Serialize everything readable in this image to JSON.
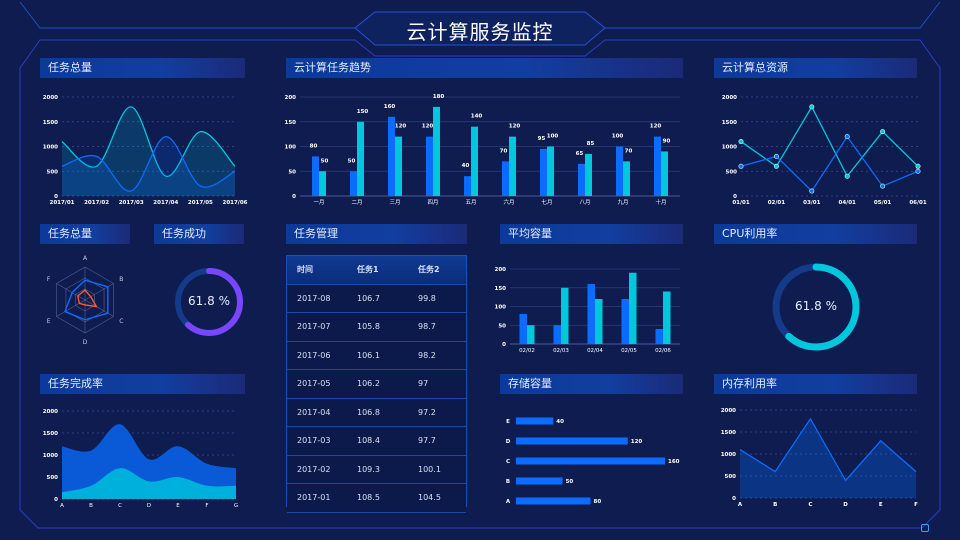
{
  "header": {
    "title": "云计算服务监控"
  },
  "panels": {
    "total_tasks": "任务总量",
    "trend": "云计算任务趋势",
    "resources": "云计算总资源",
    "total_tasks_radar": "任务总量",
    "task_success": "任务成功",
    "task_mgmt": "任务管理",
    "avg_capacity": "平均容量",
    "cpu": "CPU利用率",
    "completion": "任务完成率",
    "storage": "存储容量",
    "memory": "内存利用率"
  },
  "colors": {
    "blue": "#0b6cff",
    "cyan": "#00c8dc",
    "purple": "#7a45ff",
    "orange": "#ff5a2a",
    "track": "#143a8a"
  },
  "task_success": {
    "value": 61.8,
    "label": "61.8 %"
  },
  "cpu": {
    "value": 61.8,
    "label": "61.8 %"
  },
  "table": {
    "headers": [
      "时间",
      "任务1",
      "任务2"
    ],
    "rows": [
      [
        "2017-08",
        "106.7",
        "99.8"
      ],
      [
        "2017-07",
        "105.8",
        "98.7"
      ],
      [
        "2017-06",
        "106.1",
        "98.2"
      ],
      [
        "2017-05",
        "106.2",
        "97"
      ],
      [
        "2017-04",
        "106.8",
        "97.2"
      ],
      [
        "2017-03",
        "108.4",
        "97.7"
      ],
      [
        "2017-02",
        "109.3",
        "100.1"
      ],
      [
        "2017-01",
        "108.5",
        "104.5"
      ]
    ]
  },
  "chart_data": [
    {
      "id": "total_tasks",
      "type": "area",
      "smooth": true,
      "categories": [
        "2017/01",
        "2017/02",
        "2017/03",
        "2017/04",
        "2017/05",
        "2017/06"
      ],
      "ylim": [
        0,
        2000
      ],
      "yticks": [
        0,
        500,
        1000,
        1500,
        2000
      ],
      "series": [
        {
          "values": [
            1100,
            600,
            1800,
            400,
            1300,
            600
          ],
          "color": "#00c8dc"
        },
        {
          "values": [
            600,
            800,
            100,
            1200,
            200,
            500
          ],
          "color": "#0b6cff"
        }
      ]
    },
    {
      "id": "trend",
      "type": "bar",
      "categories": [
        "一月",
        "二月",
        "三月",
        "四月",
        "五月",
        "六月",
        "七月",
        "八月",
        "九月",
        "十月"
      ],
      "ylim": [
        0,
        200
      ],
      "yticks": [
        0,
        50,
        100,
        150,
        200
      ],
      "series": [
        {
          "values": [
            80,
            50,
            160,
            120,
            40,
            70,
            95,
            65,
            100,
            120
          ],
          "color": "#0b6cff"
        },
        {
          "values": [
            50,
            150,
            120,
            180,
            140,
            120,
            100,
            85,
            70,
            90
          ],
          "color": "#00c8dc"
        }
      ],
      "data_labels": true
    },
    {
      "id": "resources",
      "type": "line",
      "categories": [
        "01/01",
        "02/01",
        "03/01",
        "04/01",
        "05/01",
        "06/01"
      ],
      "ylim": [
        0,
        2000
      ],
      "yticks": [
        0,
        500,
        1000,
        1500,
        2000
      ],
      "series": [
        {
          "values": [
            1100,
            600,
            1800,
            400,
            1300,
            600
          ],
          "color": "#00c8dc"
        },
        {
          "values": [
            600,
            800,
            100,
            1200,
            200,
            500
          ],
          "color": "#0b6cff"
        }
      ]
    },
    {
      "id": "radar",
      "type": "radar",
      "indicators": [
        "A",
        "B",
        "C",
        "D",
        "E",
        "F"
      ],
      "max": 100,
      "series": [
        {
          "values": [
            60,
            80,
            80,
            60,
            70,
            45
          ],
          "color": "#0b6cff"
        },
        {
          "values": [
            30,
            20,
            40,
            15,
            20,
            25
          ],
          "color": "#ff5a2a"
        }
      ]
    },
    {
      "id": "avg_capacity",
      "type": "bar",
      "categories": [
        "02/02",
        "02/03",
        "02/04",
        "02/05",
        "02/06"
      ],
      "ylim": [
        0,
        200
      ],
      "yticks": [
        0,
        50,
        100,
        150,
        200
      ],
      "series": [
        {
          "values": [
            80,
            50,
            160,
            120,
            40
          ],
          "color": "#0b6cff"
        },
        {
          "values": [
            50,
            150,
            120,
            190,
            140
          ],
          "color": "#00c8dc"
        }
      ]
    },
    {
      "id": "storage",
      "type": "bar",
      "orientation": "horizontal",
      "categories": [
        "A",
        "B",
        "C",
        "D",
        "E"
      ],
      "values": [
        80,
        50,
        160,
        120,
        40
      ],
      "xlim": [
        0,
        160
      ],
      "color": "#0b6cff",
      "data_labels": true
    },
    {
      "id": "completion",
      "type": "area",
      "smooth": true,
      "stacked": true,
      "categories": [
        "A",
        "B",
        "C",
        "D",
        "E",
        "F",
        "G"
      ],
      "ylim": [
        0,
        2000
      ],
      "yticks": [
        0,
        500,
        1000,
        1500,
        2000
      ],
      "series": [
        {
          "values": [
            150,
            300,
            700,
            400,
            500,
            300,
            300
          ],
          "color": "#00b0dc"
        },
        {
          "values": [
            1050,
            800,
            1000,
            500,
            700,
            500,
            400
          ],
          "color": "#0a5ad8"
        }
      ]
    },
    {
      "id": "memory",
      "type": "area",
      "categories": [
        "A",
        "B",
        "C",
        "D",
        "E",
        "F"
      ],
      "ylim": [
        0,
        2000
      ],
      "yticks": [
        0,
        500,
        1000,
        1500,
        2000
      ],
      "series": [
        {
          "values": [
            1100,
            600,
            1800,
            400,
            1300,
            600
          ],
          "color": "#0b6cff"
        }
      ]
    }
  ]
}
